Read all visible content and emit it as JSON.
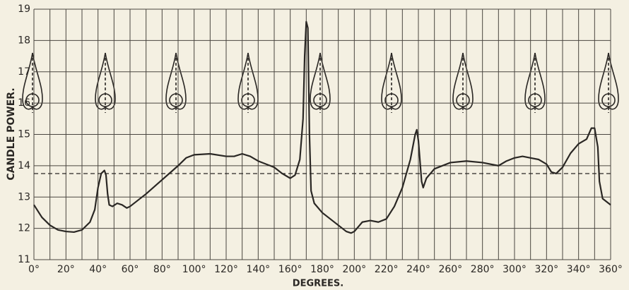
{
  "chart_data": {
    "type": "line",
    "xlabel": "DEGREES.",
    "ylabel": "CANDLE POWER.",
    "x": [
      0,
      5,
      10,
      15,
      20,
      25,
      30,
      35,
      38,
      40,
      42,
      44,
      45,
      46,
      47,
      49,
      52,
      55,
      58,
      60,
      70,
      80,
      90,
      95,
      100,
      110,
      120,
      125,
      130,
      135,
      140,
      150,
      155,
      160,
      163,
      166,
      168,
      169,
      170,
      171,
      172,
      173,
      175,
      180,
      190,
      195,
      198,
      200,
      205,
      210,
      215,
      220,
      225,
      230,
      235,
      238,
      239,
      240,
      242,
      243,
      245,
      250,
      260,
      270,
      280,
      290,
      295,
      300,
      305,
      310,
      315,
      320,
      323,
      326,
      330,
      335,
      340,
      345,
      348,
      350,
      352,
      353,
      355,
      360
    ],
    "series": [
      {
        "color": "#2a2724",
        "values": [
          12.75,
          12.35,
          12.1,
          11.95,
          11.9,
          11.88,
          11.95,
          12.2,
          12.6,
          13.3,
          13.75,
          13.85,
          13.7,
          13.1,
          12.75,
          12.7,
          12.8,
          12.75,
          12.65,
          12.7,
          13.1,
          13.55,
          14.0,
          14.25,
          14.35,
          14.38,
          14.3,
          14.3,
          14.38,
          14.3,
          14.15,
          13.95,
          13.75,
          13.6,
          13.7,
          14.2,
          15.5,
          17.5,
          18.6,
          18.4,
          15.0,
          13.2,
          12.8,
          12.5,
          12.1,
          11.9,
          11.85,
          11.9,
          12.2,
          12.25,
          12.2,
          12.3,
          12.7,
          13.3,
          14.2,
          15.0,
          15.15,
          14.8,
          13.5,
          13.3,
          13.6,
          13.9,
          14.1,
          14.15,
          14.1,
          14.0,
          14.15,
          14.25,
          14.3,
          14.25,
          14.2,
          14.05,
          13.8,
          13.75,
          13.95,
          14.4,
          14.7,
          14.85,
          15.2,
          15.2,
          14.6,
          13.5,
          12.95,
          12.75
        ]
      }
    ],
    "reference_line": 13.75,
    "xlim": [
      0,
      360
    ],
    "xticks": [
      {
        "value": 0,
        "label": "0°"
      },
      {
        "value": 20,
        "label": "20°"
      },
      {
        "value": 40,
        "label": "40°"
      },
      {
        "value": 60,
        "label": "60°"
      },
      {
        "value": 80,
        "label": "80°"
      },
      {
        "value": 100,
        "label": "100°"
      },
      {
        "value": 120,
        "label": "120°"
      },
      {
        "value": 140,
        "label": "140°"
      },
      {
        "value": 160,
        "label": "160°"
      },
      {
        "value": 180,
        "label": "180°"
      },
      {
        "value": 200,
        "label": "200°"
      },
      {
        "value": 220,
        "label": "220°"
      },
      {
        "value": 240,
        "label": "240°"
      },
      {
        "value": 260,
        "label": "260°"
      },
      {
        "value": 280,
        "label": "280°"
      },
      {
        "value": 300,
        "label": "300°"
      },
      {
        "value": 320,
        "label": "320°"
      },
      {
        "value": 340,
        "label": "340°"
      },
      {
        "value": 360,
        "label": "360°"
      }
    ],
    "x_minor_ticks": [
      10,
      30,
      50,
      70,
      90,
      110,
      130,
      150,
      170,
      190,
      210,
      230,
      250,
      270,
      290,
      310,
      330,
      350
    ],
    "ylim": [
      11,
      19
    ],
    "yticks": [
      11,
      12,
      13,
      14,
      15,
      16,
      17,
      18,
      19
    ],
    "grid": true
  }
}
